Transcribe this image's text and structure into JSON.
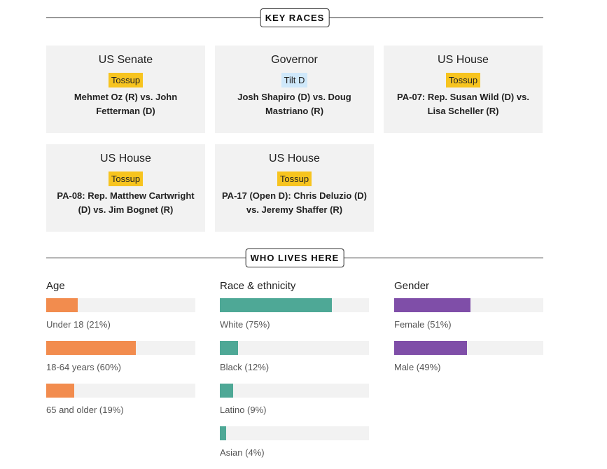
{
  "key_races": {
    "title": "KEY RACES",
    "races": [
      {
        "office": "US Senate",
        "rating": "Tossup",
        "rating_color": "#f7c41f",
        "matchup": "Mehmet Oz (R) vs. John Fetterman (D)"
      },
      {
        "office": "Governor",
        "rating": "Tilt D",
        "rating_color": "#cfe8fa",
        "matchup": "Josh Shapiro (D) vs. Doug Mastriano (R)"
      },
      {
        "office": "US House",
        "rating": "Tossup",
        "rating_color": "#f7c41f",
        "matchup": "PA-07: Rep. Susan Wild (D) vs. Lisa Scheller (R)"
      },
      {
        "office": "US House",
        "rating": "Tossup",
        "rating_color": "#f7c41f",
        "matchup": "PA-08: Rep. Matthew Cartwright (D) vs. Jim Bognet (R)"
      },
      {
        "office": "US House",
        "rating": "Tossup",
        "rating_color": "#f7c41f",
        "matchup": "PA-17 (Open D): Chris Deluzio (D) vs. Jeremy Shaffer (R)"
      }
    ]
  },
  "who_lives_here": {
    "title": "WHO LIVES HERE",
    "groups": [
      {
        "heading": "Age",
        "color": "#f28c4e",
        "items": [
          {
            "label": "Under 18 (21%)",
            "percent": 21
          },
          {
            "label": "18-64 years (60%)",
            "percent": 60
          },
          {
            "label": "65 and older (19%)",
            "percent": 19
          }
        ]
      },
      {
        "heading": "Race & ethnicity",
        "color": "#4ea896",
        "items": [
          {
            "label": "White (75%)",
            "percent": 75
          },
          {
            "label": "Black (12%)",
            "percent": 12
          },
          {
            "label": "Latino (9%)",
            "percent": 9
          },
          {
            "label": "Asian (4%)",
            "percent": 4
          }
        ]
      },
      {
        "heading": "Gender",
        "color": "#7f4ea8",
        "items": [
          {
            "label": "Female (51%)",
            "percent": 51
          },
          {
            "label": "Male (49%)",
            "percent": 49
          }
        ]
      }
    ]
  }
}
